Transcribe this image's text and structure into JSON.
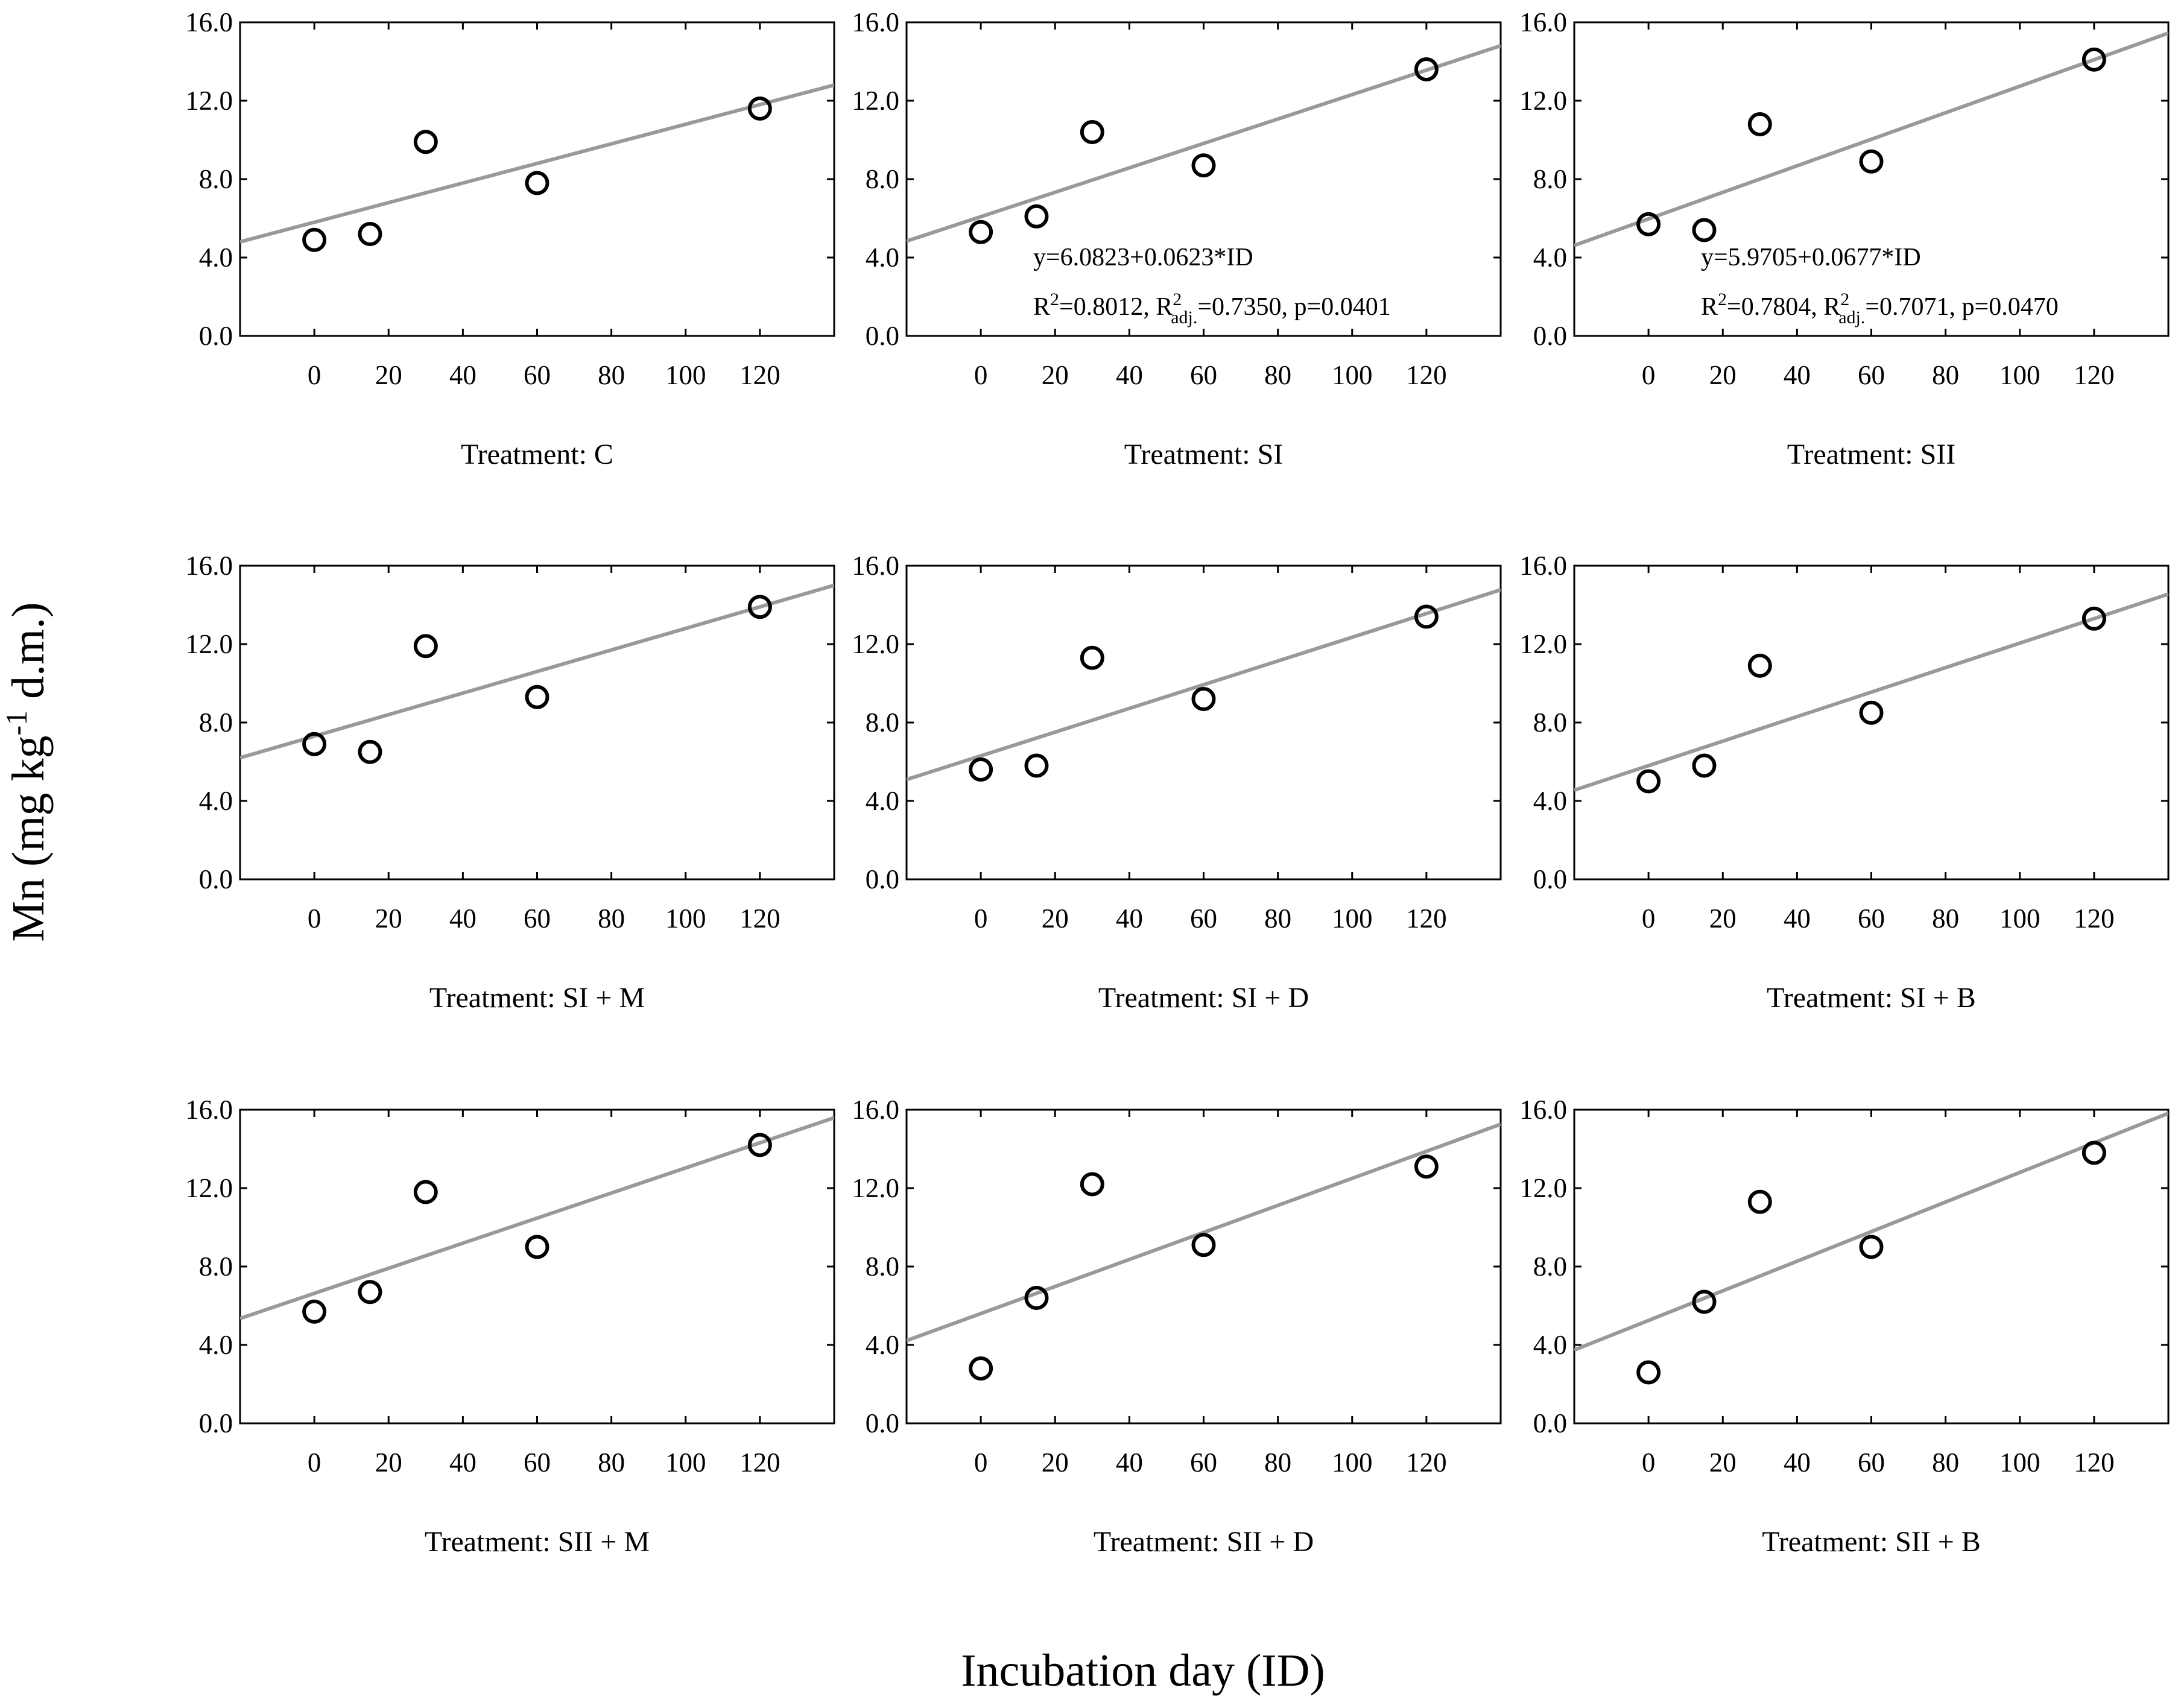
{
  "chart_data": {
    "ylabel_main": "Mn (mg kg",
    "ylabel_sup": "-1",
    "ylabel_tail": " d.m.)",
    "xlabel": "Incubation day (ID)",
    "xlim": [
      -20,
      140
    ],
    "ylim": [
      0,
      16
    ],
    "x_ticks": [
      "0",
      "20",
      "40",
      "60",
      "80",
      "100",
      "120"
    ],
    "y_ticks": [
      "0.0",
      "4.0",
      "8.0",
      "12.0",
      "16.0"
    ],
    "colors": {
      "fit_line": "#999999",
      "marker": "#000000",
      "axes": "#000000"
    },
    "panels": [
      {
        "title": "Treatment: C",
        "type": "scatter",
        "x": [
          0,
          15,
          30,
          60,
          120
        ],
        "y": [
          4.9,
          5.2,
          9.9,
          7.8,
          11.6
        ],
        "fit": {
          "intercept": 5.8,
          "slope": 0.05
        }
      },
      {
        "title": "Treatment: SI",
        "type": "scatter",
        "x": [
          0,
          15,
          30,
          60,
          120
        ],
        "y": [
          5.3,
          6.1,
          10.4,
          8.7,
          13.6
        ],
        "fit": {
          "intercept": 6.0823,
          "slope": 0.0623
        },
        "equation": "y=6.0823+0.0623*ID",
        "stats": {
          "r2_prefix": "R",
          "r2_sup": "2",
          "r2_val": "=0.8012, R",
          "adj_sup": "2",
          "adj_sub": "adj.",
          "adj_val": "=0.7350, p=0.0401"
        }
      },
      {
        "title": "Treatment: SII",
        "type": "scatter",
        "x": [
          0,
          15,
          30,
          60,
          120
        ],
        "y": [
          5.7,
          5.4,
          10.8,
          8.9,
          14.1
        ],
        "fit": {
          "intercept": 5.9705,
          "slope": 0.0677
        },
        "equation": "y=5.9705+0.0677*ID",
        "stats": {
          "r2_prefix": "R",
          "r2_sup": "2",
          "r2_val": "=0.7804, R",
          "adj_sup": "2",
          "adj_sub": "adj.",
          "adj_val": "=0.7071, p=0.0470"
        }
      },
      {
        "title": "Treatment: SI + M",
        "type": "scatter",
        "x": [
          0,
          15,
          30,
          60,
          120
        ],
        "y": [
          6.9,
          6.5,
          11.9,
          9.3,
          13.9
        ],
        "fit": {
          "intercept": 7.3,
          "slope": 0.055
        }
      },
      {
        "title": "Treatment: SI + D",
        "type": "scatter",
        "x": [
          0,
          15,
          30,
          60,
          120
        ],
        "y": [
          5.6,
          5.8,
          11.3,
          9.2,
          13.4
        ],
        "fit": {
          "intercept": 6.3,
          "slope": 0.0605
        }
      },
      {
        "title": "Treatment: SI + B",
        "type": "scatter",
        "x": [
          0,
          15,
          30,
          60,
          120
        ],
        "y": [
          5.0,
          5.8,
          10.9,
          8.5,
          13.3
        ],
        "fit": {
          "intercept": 5.8,
          "slope": 0.0625
        }
      },
      {
        "title": "Treatment: SII + M",
        "type": "scatter",
        "x": [
          0,
          15,
          30,
          60,
          120
        ],
        "y": [
          5.7,
          6.7,
          11.8,
          9.0,
          14.2
        ],
        "fit": {
          "intercept": 6.63,
          "slope": 0.064
        }
      },
      {
        "title": "Treatment: SII + D",
        "type": "scatter",
        "x": [
          0,
          15,
          30,
          60,
          120
        ],
        "y": [
          2.8,
          6.4,
          12.2,
          9.1,
          13.1
        ],
        "fit": {
          "intercept": 5.6,
          "slope": 0.069
        }
      },
      {
        "title": "Treatment: SII + B",
        "type": "scatter",
        "x": [
          0,
          15,
          30,
          60,
          120
        ],
        "y": [
          2.6,
          6.2,
          11.3,
          9.0,
          13.8
        ],
        "fit": {
          "intercept": 5.25,
          "slope": 0.0755
        }
      }
    ]
  }
}
